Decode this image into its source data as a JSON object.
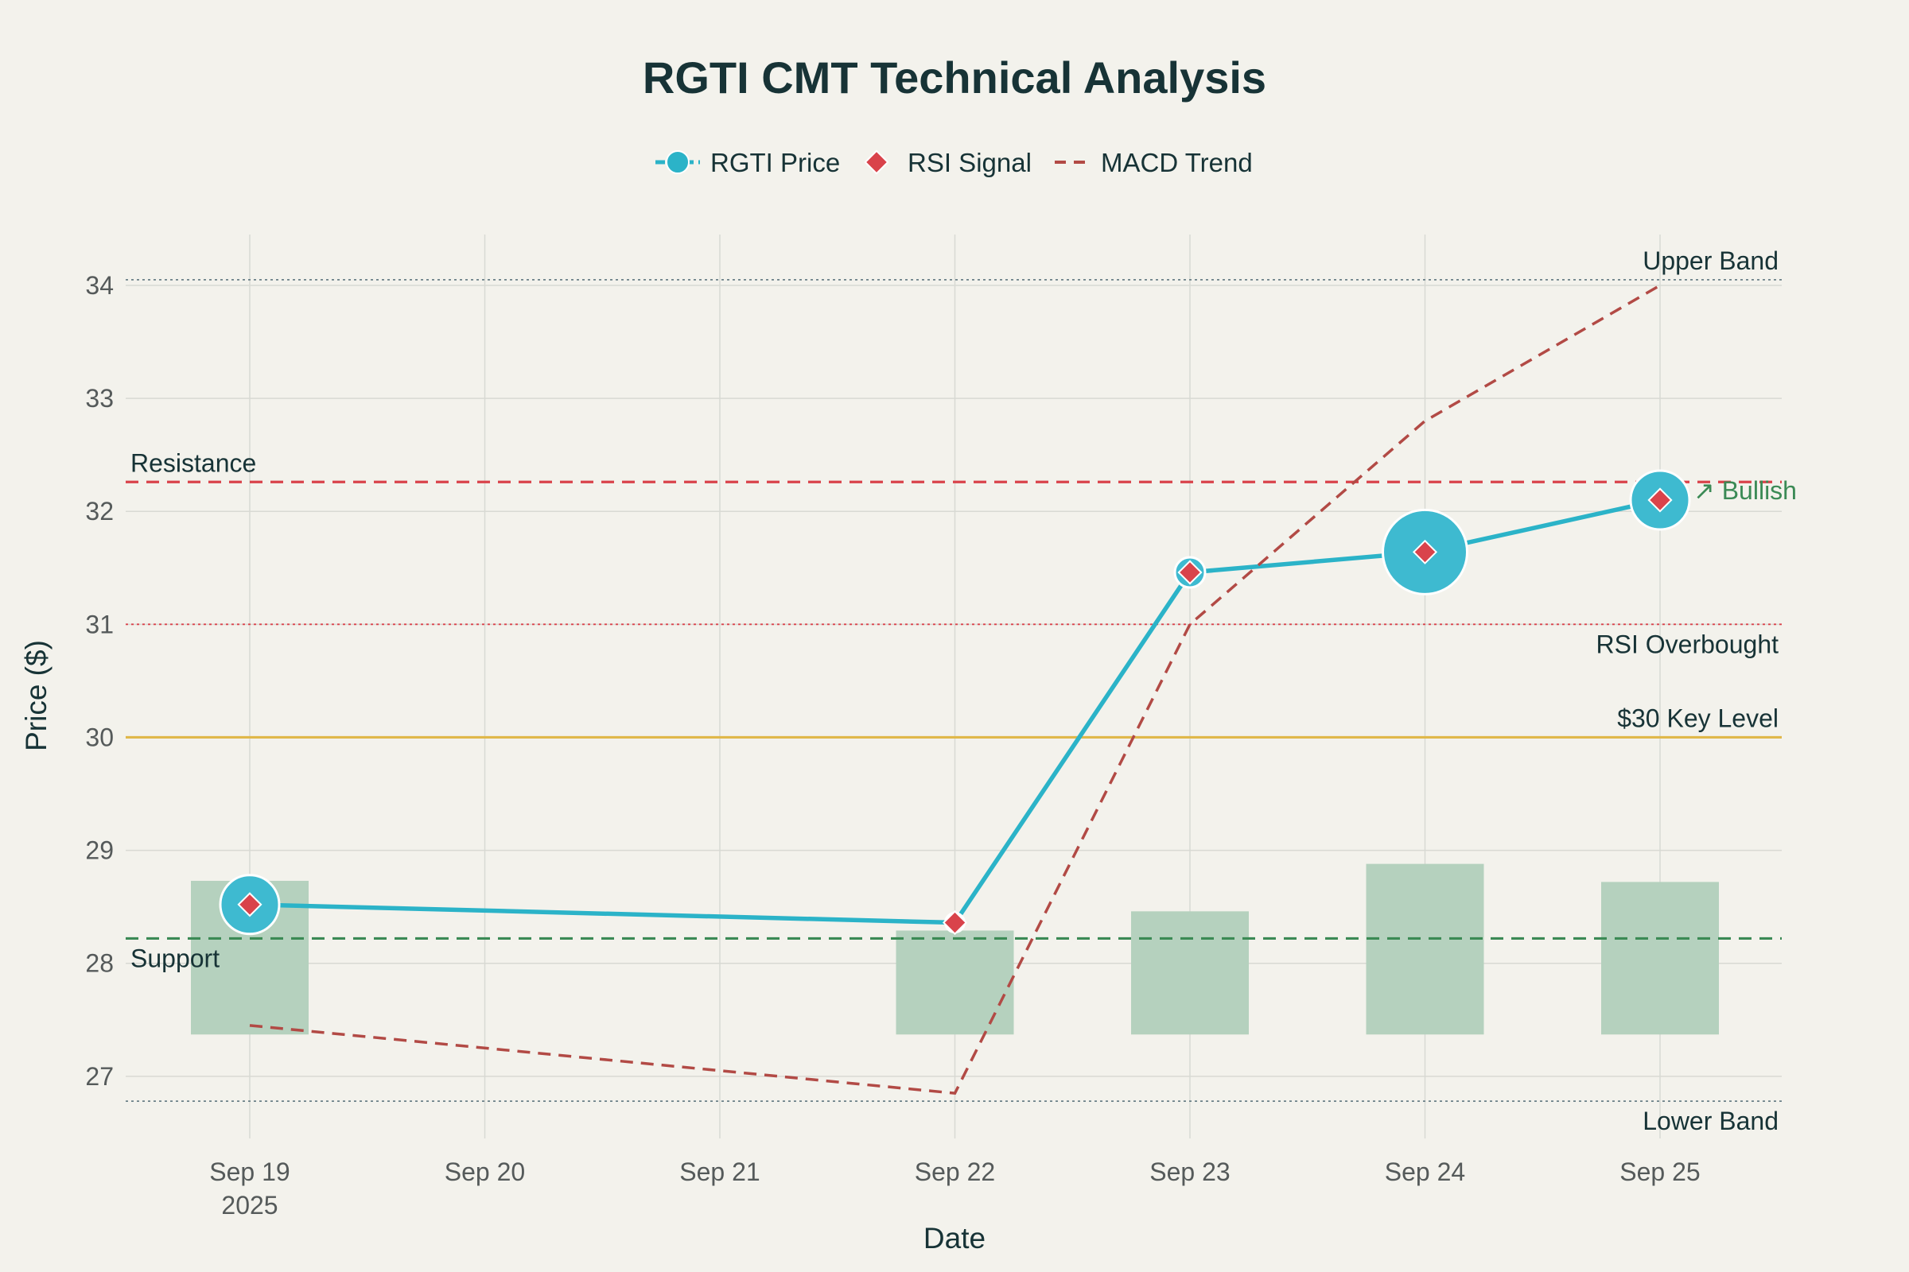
{
  "chart_data": {
    "type": "line",
    "title": "RGTI CMT Technical Analysis",
    "xlabel": "Date",
    "ylabel": "Price ($)",
    "x": [
      "Sep 19",
      "Sep 20",
      "Sep 21",
      "Sep 22",
      "Sep 23",
      "Sep 24",
      "Sep 25"
    ],
    "x_tick_labels": [
      "Sep 19",
      "Sep 20",
      "Sep 21",
      "Sep 22",
      "Sep 23",
      "Sep 24",
      "Sep 25"
    ],
    "x_year_label": "2025",
    "y_ticks": [
      27,
      28,
      29,
      30,
      31,
      32,
      33,
      34
    ],
    "ylim": [
      26.45,
      34.45
    ],
    "grid": true,
    "legend_position": "top-center",
    "series": [
      {
        "name": "RGTI Price",
        "kind": "line+markers",
        "color": "#2bb3c8",
        "x": [
          "Sep 19",
          "Sep 22",
          "Sep 23",
          "Sep 24",
          "Sep 25"
        ],
        "values": [
          28.52,
          28.36,
          31.46,
          31.64,
          32.1
        ],
        "marker_size_level": [
          3,
          1,
          1.5,
          4,
          3
        ]
      },
      {
        "name": "RSI Signal",
        "kind": "markers",
        "color": "#d9434b",
        "x": [
          "Sep 19",
          "Sep 22",
          "Sep 23",
          "Sep 24",
          "Sep 25"
        ],
        "values": [
          28.52,
          28.36,
          31.46,
          31.64,
          32.1
        ]
      },
      {
        "name": "MACD Trend",
        "kind": "dashed-line",
        "color": "#b24a45",
        "x": [
          "Sep 19",
          "Sep 22",
          "Sep 23",
          "Sep 24",
          "Sep 25"
        ],
        "values": [
          27.45,
          26.85,
          31.0,
          32.8,
          34.0
        ]
      }
    ],
    "volume_bars": {
      "color": "#b5d1be",
      "x": [
        "Sep 19",
        "Sep 22",
        "Sep 23",
        "Sep 24",
        "Sep 25"
      ],
      "base": 27.37,
      "tops": [
        28.73,
        28.29,
        28.46,
        28.88,
        28.72
      ]
    },
    "reference_lines": [
      {
        "label": "Upper Band",
        "value": 34.05,
        "style": "dotted",
        "color": "#6b8088",
        "label_side": "right-above"
      },
      {
        "label": "Resistance",
        "value": 32.26,
        "style": "dashed",
        "color": "#d9434b",
        "label_side": "left-above"
      },
      {
        "label": "RSI Overbought",
        "value": 31.0,
        "style": "dotted",
        "color": "#d9434b",
        "label_side": "right-below"
      },
      {
        "label": "$30 Key Level",
        "value": 30.0,
        "style": "solid",
        "color": "#e0b84a",
        "label_side": "right-above"
      },
      {
        "label": "Support",
        "value": 28.22,
        "style": "dashed",
        "color": "#3b8a55",
        "label_side": "left-below"
      },
      {
        "label": "Lower Band",
        "value": 26.78,
        "style": "dotted",
        "color": "#6b8088",
        "label_side": "right-below"
      }
    ],
    "annotations": [
      {
        "text": "↗ Bullish",
        "x": "Sep 25",
        "y": 32.1,
        "color": "#3b8a55"
      }
    ]
  }
}
